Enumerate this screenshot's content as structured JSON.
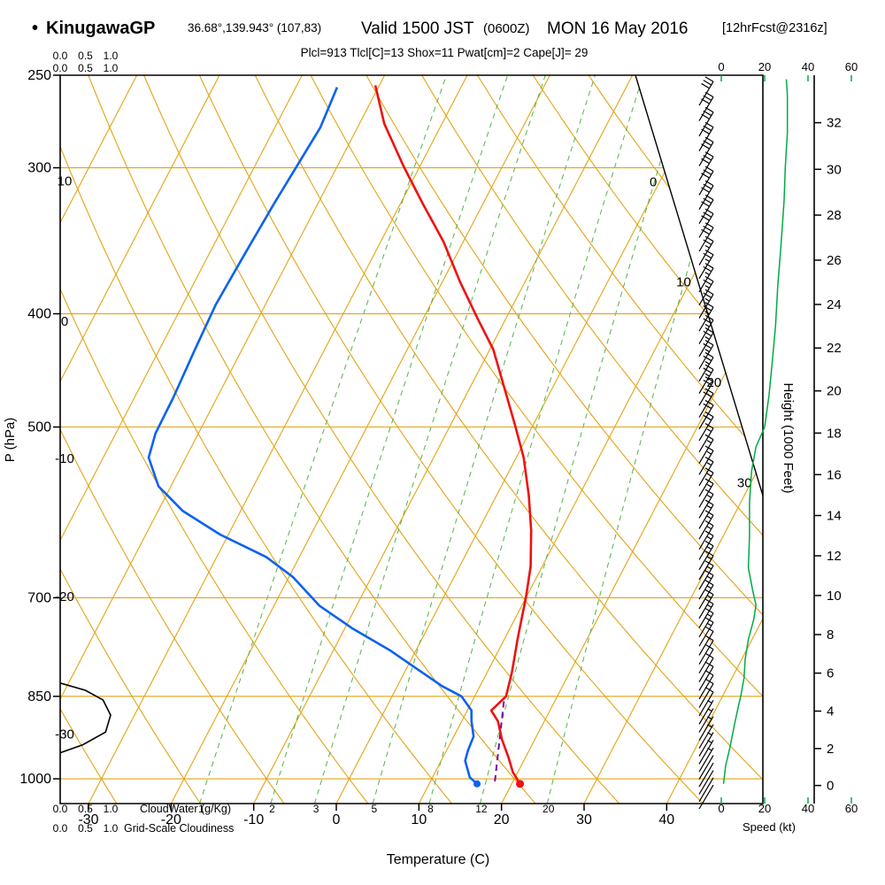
{
  "header": {
    "bullet": "•",
    "station": "KinugawaGP",
    "coords": "36.68°,139.943° (107,83)",
    "valid": "Valid 1500 JST",
    "zulu": "(0600Z)",
    "date": "MON 16 May 2016",
    "fcst": "[12hrFcst@2316z]",
    "indices": "Plcl=913  Tlcl[C]=13  Shox=11  Pwat[cm]=2  Cape[J]= 29"
  },
  "axes": {
    "pressure_label": "P (hPa)",
    "pressure_ticks": [
      250,
      300,
      400,
      500,
      700,
      850,
      1000
    ],
    "temp_label": "Temperature (C)",
    "temp_ticks": [
      -30,
      -20,
      -10,
      0,
      10,
      20,
      30,
      40
    ],
    "height_label": "Height (1000 Feet)",
    "height_ticks": [
      0,
      2,
      4,
      6,
      8,
      10,
      12,
      14,
      16,
      18,
      20,
      22,
      24,
      26,
      28,
      30,
      32
    ],
    "speed_label": "Speed (kt)",
    "speed_ticks": [
      0,
      20,
      40,
      60
    ],
    "cloud_scale": [
      "0.0",
      "0.5",
      "1.0"
    ],
    "cloudwater_label": "CloudWater (g/Kg)",
    "cloudiness_label": "Grid-Scale Cloudiness",
    "dry_adiabat_labels": [
      10,
      0,
      -10,
      -20,
      -30
    ],
    "isotherm_labels": [
      0,
      10,
      20,
      30
    ],
    "mixing_ratio_labels": [
      1,
      2,
      3,
      5,
      8,
      12,
      20
    ]
  },
  "colors": {
    "grid": "#e2a414",
    "mixing": "#55b24a",
    "green": "#00ab44",
    "red": "#ee1111",
    "blue": "#0b62f0",
    "magenta": "#c4006e",
    "purple": "#7d00a8",
    "black": "#000000"
  },
  "chart_data": {
    "type": "skewt-logp",
    "pressure_range_hpa": [
      250,
      1050
    ],
    "indices": {
      "Plcl": 913,
      "Tlcl_C": 13,
      "Shox": 11,
      "Pwat_cm": 2,
      "Cape_J": 29
    },
    "surface": {
      "pressure_hpa": 1010,
      "temp_c": 21.0,
      "dewpoint_c": 15.8
    },
    "temperature_profile": [
      [
        255,
        -40.5
      ],
      [
        275,
        -37
      ],
      [
        299,
        -32
      ],
      [
        322,
        -27.3
      ],
      [
        347,
        -22.4
      ],
      [
        376,
        -17.8
      ],
      [
        404,
        -13.4
      ],
      [
        429,
        -9.6
      ],
      [
        464,
        -5.7
      ],
      [
        498,
        -2.2
      ],
      [
        531,
        0.9
      ],
      [
        572,
        3.9
      ],
      [
        613,
        6.4
      ],
      [
        658,
        8.6
      ],
      [
        700,
        10.0
      ],
      [
        756,
        11.5
      ],
      [
        811,
        13.0
      ],
      [
        850,
        13.8
      ],
      [
        874,
        12.9
      ],
      [
        893,
        14.4
      ],
      [
        925,
        16.0
      ],
      [
        958,
        17.9
      ],
      [
        987,
        19.4
      ],
      [
        1010,
        21.0
      ]
    ],
    "dewpoint_profile": [
      [
        256,
        -45.0
      ],
      [
        277,
        -44.5
      ],
      [
        322,
        -45.3
      ],
      [
        357,
        -45.7
      ],
      [
        393,
        -46.0
      ],
      [
        429,
        -45.7
      ],
      [
        472,
        -45.3
      ],
      [
        506,
        -45.2
      ],
      [
        531,
        -44.5
      ],
      [
        562,
        -41.5
      ],
      [
        590,
        -37.0
      ],
      [
        618,
        -31.0
      ],
      [
        646,
        -24.0
      ],
      [
        672,
        -19.5
      ],
      [
        711,
        -14.5
      ],
      [
        744,
        -9.0
      ],
      [
        776,
        -3.2
      ],
      [
        804,
        1.1
      ],
      [
        833,
        5.4
      ],
      [
        850,
        8.4
      ],
      [
        874,
        10.5
      ],
      [
        893,
        11.2
      ],
      [
        920,
        12.4
      ],
      [
        946,
        12.6
      ],
      [
        965,
        12.9
      ],
      [
        997,
        14.5
      ],
      [
        1010,
        15.8
      ]
    ],
    "parcel_path": [
      [
        1005,
        17.8
      ],
      [
        853,
        13.7
      ]
    ],
    "cloudiness_profile": [
      [
        828,
        0.0
      ],
      [
        840,
        0.5
      ],
      [
        856,
        0.85
      ],
      [
        882,
        1.0
      ],
      [
        912,
        0.9
      ],
      [
        935,
        0.45
      ],
      [
        950,
        0.0
      ]
    ],
    "wind_speed_profile": [
      [
        252,
        30
      ],
      [
        260,
        30.5
      ],
      [
        280,
        30.5
      ],
      [
        300,
        29.5
      ],
      [
        320,
        29
      ],
      [
        350,
        27.5
      ],
      [
        380,
        26
      ],
      [
        410,
        25
      ],
      [
        440,
        23.5
      ],
      [
        470,
        22
      ],
      [
        500,
        20
      ],
      [
        520,
        16
      ],
      [
        545,
        14
      ],
      [
        580,
        13
      ],
      [
        620,
        13
      ],
      [
        660,
        12.5
      ],
      [
        690,
        14.5
      ],
      [
        710,
        16
      ],
      [
        730,
        15
      ],
      [
        760,
        12.5
      ],
      [
        790,
        11
      ],
      [
        820,
        10.5
      ],
      [
        850,
        9
      ],
      [
        865,
        8
      ],
      [
        900,
        6
      ],
      [
        940,
        4
      ],
      [
        975,
        2
      ],
      [
        1010,
        1
      ]
    ],
    "grid": {
      "isotherms_c": {
        "min": -120,
        "max": 40,
        "step": 10
      },
      "dry_adiabats_c": {
        "min": -30,
        "max": 130,
        "step": 10
      },
      "mixing_ratio_gkg": [
        1,
        2,
        3,
        5,
        8,
        12,
        20
      ],
      "pressure_lines_hpa": [
        300,
        400,
        500,
        700,
        850,
        1000
      ]
    }
  }
}
